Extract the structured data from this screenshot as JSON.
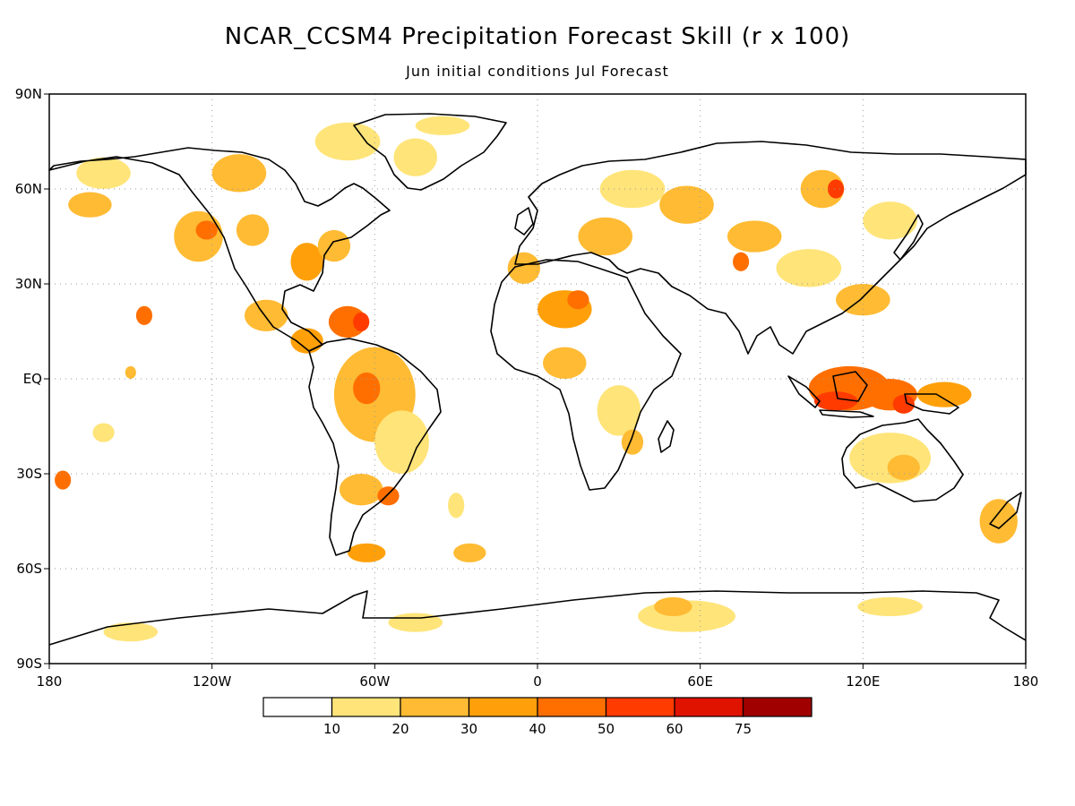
{
  "title": "NCAR_CCSM4 Precipitation Forecast Skill (r x 100)",
  "subtitle": "Jun initial conditions  Jul Forecast",
  "map": {
    "lat_ticks": [
      "90N",
      "60N",
      "30N",
      "EQ",
      "30S",
      "60S",
      "90S"
    ],
    "lat_values": [
      90,
      60,
      30,
      0,
      -30,
      -60,
      -90
    ],
    "lon_ticks": [
      "180",
      "120W",
      "60W",
      "0",
      "60E",
      "120E",
      "180"
    ],
    "lon_values": [
      -180,
      -120,
      -60,
      0,
      60,
      120,
      180
    ],
    "grid_lines": true
  },
  "legend": {
    "thresholds": [
      "10",
      "20",
      "30",
      "40",
      "50",
      "60",
      "75"
    ],
    "colors": [
      "#ffffff",
      "#ffe479",
      "#ffbb33",
      "#ffa00a",
      "#ff6f00",
      "#ff3b00",
      "#e01200",
      "#a00000"
    ]
  },
  "skill_regions": [
    {
      "lon": -125,
      "lat": 45,
      "rx": 9,
      "ry": 8,
      "level": 2
    },
    {
      "lon": -122,
      "lat": 47,
      "rx": 4,
      "ry": 3,
      "level": 4
    },
    {
      "lon": -110,
      "lat": 65,
      "rx": 10,
      "ry": 6,
      "level": 2
    },
    {
      "lon": -160,
      "lat": 65,
      "rx": 10,
      "ry": 5,
      "level": 1
    },
    {
      "lon": -165,
      "lat": 55,
      "rx": 8,
      "ry": 4,
      "level": 2
    },
    {
      "lon": -105,
      "lat": 47,
      "rx": 6,
      "ry": 5,
      "level": 2
    },
    {
      "lon": -85,
      "lat": 37,
      "rx": 6,
      "ry": 6,
      "level": 3
    },
    {
      "lon": -75,
      "lat": 42,
      "rx": 6,
      "ry": 5,
      "level": 2
    },
    {
      "lon": -100,
      "lat": 20,
      "rx": 8,
      "ry": 5,
      "level": 2
    },
    {
      "lon": -85,
      "lat": 12,
      "rx": 6,
      "ry": 4,
      "level": 3
    },
    {
      "lon": -70,
      "lat": 18,
      "rx": 7,
      "ry": 5,
      "level": 4
    },
    {
      "lon": -65,
      "lat": 18,
      "rx": 3,
      "ry": 3,
      "level": 5
    },
    {
      "lon": -70,
      "lat": 75,
      "rx": 12,
      "ry": 6,
      "level": 1
    },
    {
      "lon": -45,
      "lat": 70,
      "rx": 8,
      "ry": 6,
      "level": 1
    },
    {
      "lon": -35,
      "lat": 80,
      "rx": 10,
      "ry": 3,
      "level": 1
    },
    {
      "lon": -60,
      "lat": -5,
      "rx": 15,
      "ry": 15,
      "level": 2
    },
    {
      "lon": -63,
      "lat": -3,
      "rx": 5,
      "ry": 5,
      "level": 4
    },
    {
      "lon": -50,
      "lat": -20,
      "rx": 10,
      "ry": 10,
      "level": 1
    },
    {
      "lon": -65,
      "lat": -35,
      "rx": 8,
      "ry": 5,
      "level": 2
    },
    {
      "lon": -55,
      "lat": -37,
      "rx": 4,
      "ry": 3,
      "level": 4
    },
    {
      "lon": -63,
      "lat": -55,
      "rx": 7,
      "ry": 3,
      "level": 3
    },
    {
      "lon": -145,
      "lat": 20,
      "rx": 3,
      "ry": 3,
      "level": 4
    },
    {
      "lon": -150,
      "lat": 2,
      "rx": 2,
      "ry": 2,
      "level": 2
    },
    {
      "lon": -175,
      "lat": -32,
      "rx": 3,
      "ry": 3,
      "level": 4
    },
    {
      "lon": -160,
      "lat": -17,
      "rx": 4,
      "ry": 3,
      "level": 1
    },
    {
      "lon": -30,
      "lat": -40,
      "rx": 3,
      "ry": 4,
      "level": 1
    },
    {
      "lon": -25,
      "lat": -55,
      "rx": 6,
      "ry": 3,
      "level": 2
    },
    {
      "lon": 10,
      "lat": 22,
      "rx": 10,
      "ry": 6,
      "level": 3
    },
    {
      "lon": 15,
      "lat": 25,
      "rx": 4,
      "ry": 3,
      "level": 4
    },
    {
      "lon": -5,
      "lat": 35,
      "rx": 6,
      "ry": 5,
      "level": 2
    },
    {
      "lon": 10,
      "lat": 5,
      "rx": 8,
      "ry": 5,
      "level": 2
    },
    {
      "lon": 30,
      "lat": -10,
      "rx": 8,
      "ry": 8,
      "level": 1
    },
    {
      "lon": 35,
      "lat": -20,
      "rx": 4,
      "ry": 4,
      "level": 2
    },
    {
      "lon": 25,
      "lat": 45,
      "rx": 10,
      "ry": 6,
      "level": 2
    },
    {
      "lon": 35,
      "lat": 60,
      "rx": 12,
      "ry": 6,
      "level": 1
    },
    {
      "lon": 55,
      "lat": 55,
      "rx": 10,
      "ry": 6,
      "level": 2
    },
    {
      "lon": 80,
      "lat": 45,
      "rx": 10,
      "ry": 5,
      "level": 2
    },
    {
      "lon": 75,
      "lat": 37,
      "rx": 3,
      "ry": 3,
      "level": 4
    },
    {
      "lon": 105,
      "lat": 60,
      "rx": 8,
      "ry": 6,
      "level": 2
    },
    {
      "lon": 110,
      "lat": 60,
      "rx": 3,
      "ry": 3,
      "level": 5
    },
    {
      "lon": 130,
      "lat": 50,
      "rx": 10,
      "ry": 6,
      "level": 1
    },
    {
      "lon": 100,
      "lat": 35,
      "rx": 12,
      "ry": 6,
      "level": 1
    },
    {
      "lon": 120,
      "lat": 25,
      "rx": 10,
      "ry": 5,
      "level": 2
    },
    {
      "lon": 115,
      "lat": -3,
      "rx": 15,
      "ry": 7,
      "level": 4
    },
    {
      "lon": 110,
      "lat": -7,
      "rx": 8,
      "ry": 3,
      "level": 5
    },
    {
      "lon": 130,
      "lat": -5,
      "rx": 10,
      "ry": 5,
      "level": 4
    },
    {
      "lon": 135,
      "lat": -8,
      "rx": 4,
      "ry": 3,
      "level": 5
    },
    {
      "lon": 150,
      "lat": -5,
      "rx": 10,
      "ry": 4,
      "level": 3
    },
    {
      "lon": 130,
      "lat": -25,
      "rx": 15,
      "ry": 8,
      "level": 1
    },
    {
      "lon": 135,
      "lat": -28,
      "rx": 6,
      "ry": 4,
      "level": 2
    },
    {
      "lon": 170,
      "lat": -45,
      "rx": 7,
      "ry": 7,
      "level": 2
    },
    {
      "lon": 55,
      "lat": -75,
      "rx": 18,
      "ry": 5,
      "level": 1
    },
    {
      "lon": 50,
      "lat": -72,
      "rx": 7,
      "ry": 3,
      "level": 2
    },
    {
      "lon": -45,
      "lat": -77,
      "rx": 10,
      "ry": 3,
      "level": 1
    },
    {
      "lon": -150,
      "lat": -80,
      "rx": 10,
      "ry": 3,
      "level": 1
    },
    {
      "lon": 130,
      "lat": -72,
      "rx": 12,
      "ry": 3,
      "level": 1
    }
  ]
}
